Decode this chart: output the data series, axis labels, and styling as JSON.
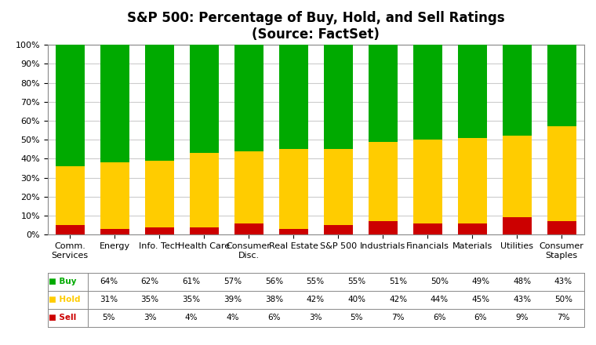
{
  "title": "S&P 500: Percentage of Buy, Hold, and Sell Ratings",
  "subtitle": "(Source: FactSet)",
  "categories": [
    "Comm.\nServices",
    "Energy",
    "Info. Tech",
    "Health Care",
    "Consumer\nDisc.",
    "Real Estate",
    "S&P 500",
    "Industrials",
    "Financials",
    "Materials",
    "Utilities",
    "Consumer\nStaples"
  ],
  "buy": [
    64,
    62,
    61,
    57,
    56,
    55,
    55,
    51,
    50,
    49,
    48,
    43
  ],
  "hold": [
    31,
    35,
    35,
    39,
    38,
    42,
    40,
    42,
    44,
    45,
    43,
    50
  ],
  "sell": [
    5,
    3,
    4,
    4,
    6,
    3,
    5,
    7,
    6,
    6,
    9,
    7
  ],
  "buy_color": "#00aa00",
  "hold_color": "#ffcc00",
  "sell_color": "#cc0000",
  "bg_color": "#ffffff",
  "grid_color": "#cccccc",
  "title_fontsize": 12,
  "tick_fontsize": 8,
  "table_fontsize": 7.5
}
